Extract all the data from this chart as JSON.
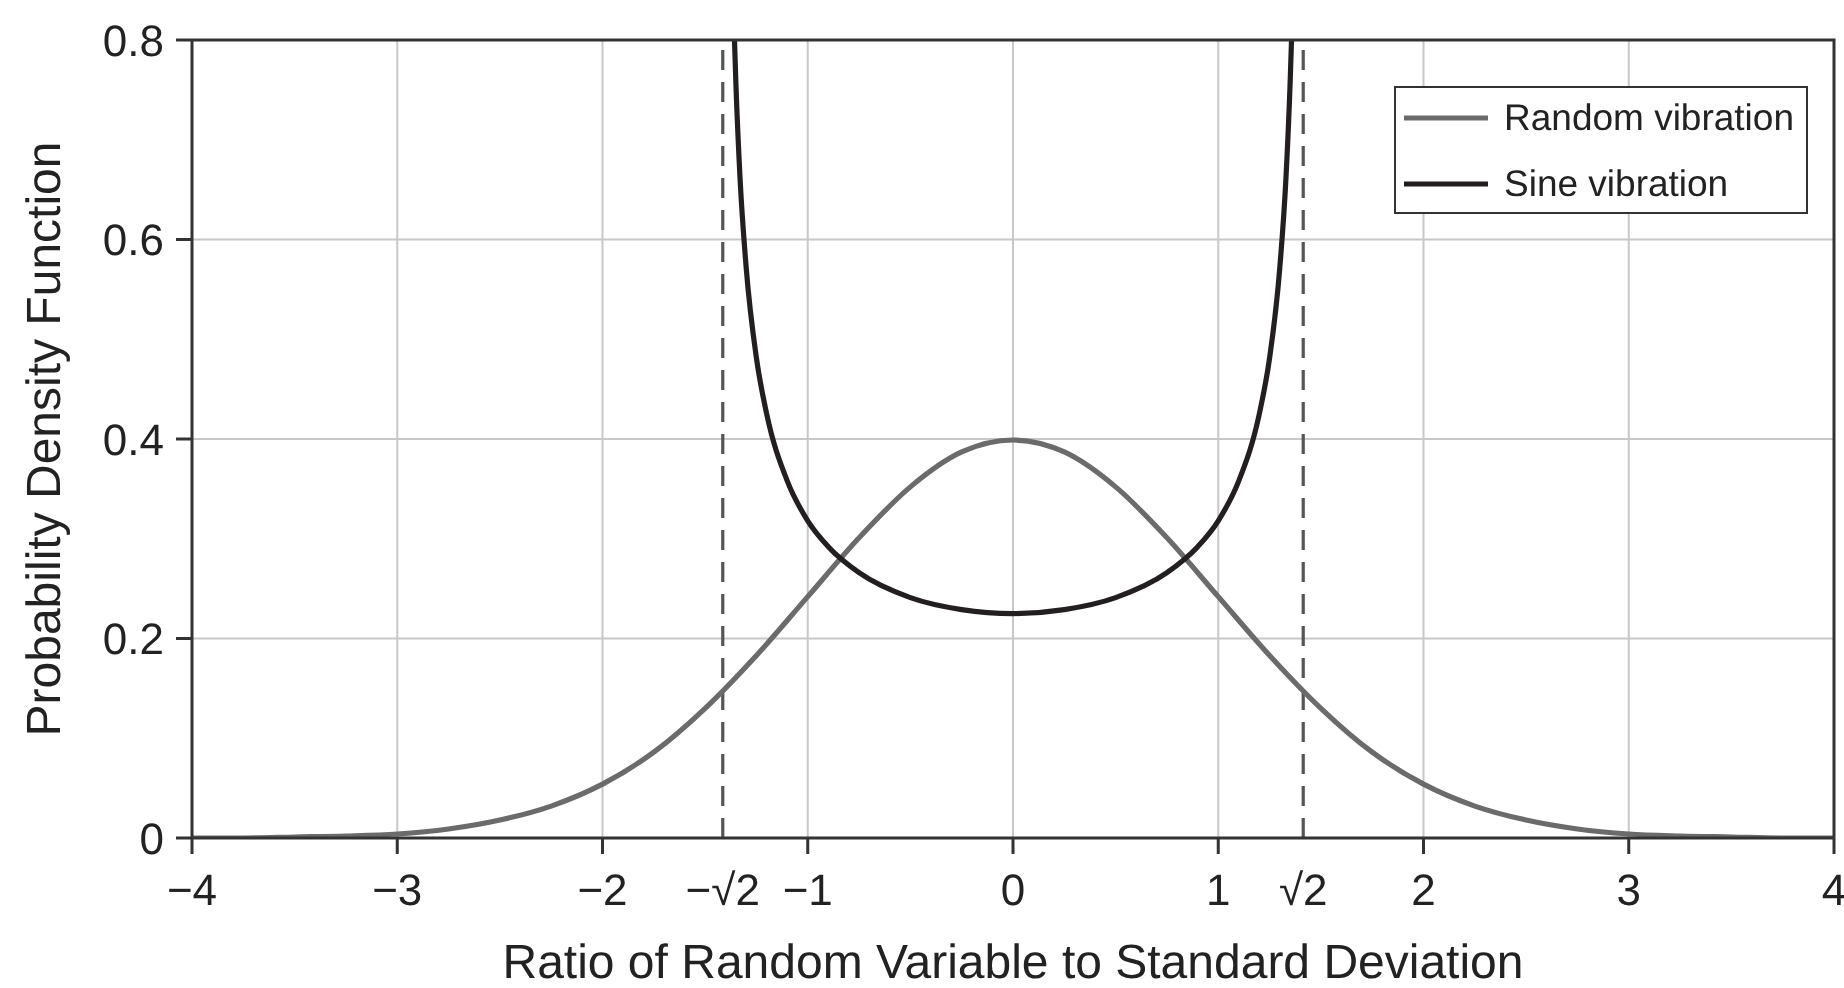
{
  "chart_data": {
    "type": "line",
    "xlabel": "Ratio of Random Variable to Standard Deviation",
    "ylabel": "Probability Density Function",
    "xlim": [
      -4,
      4
    ],
    "xticks": [
      -4,
      -3,
      -2,
      -1,
      0,
      1,
      2,
      3,
      4
    ],
    "ylim": [
      0,
      0.8
    ],
    "yticks": [
      0,
      0.2,
      0.4,
      0.6,
      0.8
    ],
    "grid": true,
    "legend": "top right",
    "series": [
      {
        "name": "Random vibration",
        "color": "#6b6b6b",
        "x": [
          -4,
          -3.75,
          -3.5,
          -3.25,
          -3,
          -2.75,
          -2.5,
          -2.25,
          -2,
          -1.75,
          -1.5,
          -1.25,
          -1,
          -0.75,
          -0.5,
          -0.25,
          0,
          0.25,
          0.5,
          0.75,
          1,
          1.25,
          1.5,
          1.75,
          2,
          2.25,
          2.5,
          2.75,
          3,
          3.25,
          3.5,
          3.75,
          4
        ],
        "values": [
          0,
          0,
          0.001,
          0.002,
          0.004,
          0.009,
          0.018,
          0.032,
          0.054,
          0.086,
          0.13,
          0.183,
          0.242,
          0.301,
          0.352,
          0.387,
          0.399,
          0.387,
          0.352,
          0.301,
          0.242,
          0.183,
          0.13,
          0.086,
          0.054,
          0.032,
          0.018,
          0.009,
          0.004,
          0.002,
          0.001,
          0,
          0
        ]
      },
      {
        "name": "Sine vibration",
        "color": "#231f20",
        "x": [
          -1.357,
          -1.35,
          -1.33,
          -1.3,
          -1.25,
          -1.2,
          -1.1,
          -1,
          -0.9,
          -0.75,
          -0.5,
          -0.25,
          0,
          0.25,
          0.5,
          0.75,
          0.9,
          1,
          1.1,
          1.2,
          1.25,
          1.3,
          1.33,
          1.35,
          1.357
        ],
        "values": [
          0.8,
          0.756,
          0.662,
          0.572,
          0.481,
          0.425,
          0.358,
          0.318,
          0.292,
          0.266,
          0.241,
          0.229,
          0.225,
          0.229,
          0.241,
          0.266,
          0.292,
          0.318,
          0.358,
          0.425,
          0.481,
          0.572,
          0.662,
          0.756,
          0.8
        ]
      }
    ],
    "ref_lines": [
      {
        "axis": "x",
        "value": -1.414,
        "label": "−√2",
        "line_style": "dashed",
        "color": "#555555"
      },
      {
        "axis": "x",
        "value": 1.414,
        "label": "√2",
        "line_style": "dashed",
        "color": "#555555"
      }
    ]
  }
}
